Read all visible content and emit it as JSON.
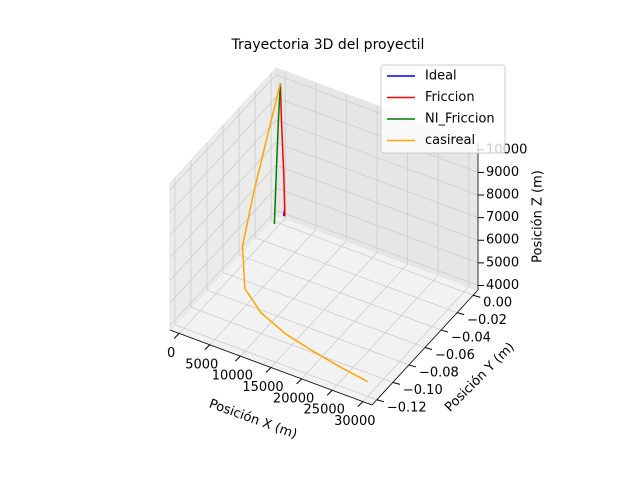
{
  "chart_data": {
    "type": "line3d",
    "title": "Trayectoria 3D del proyectil",
    "xlabel": "Posición X (m)",
    "ylabel": "Posición Y (m)",
    "zlabel": "Posición Z (m)",
    "xlim": [
      -1500,
      31500
    ],
    "ylim": [
      -0.126,
      0.006
    ],
    "zlim": [
      3800,
      10300
    ],
    "xticks": [
      0,
      5000,
      10000,
      15000,
      20000,
      25000,
      30000
    ],
    "yticks": [
      {
        "value": 0,
        "label": "0.00"
      },
      {
        "value": -0.02,
        "label": "−0.02"
      },
      {
        "value": -0.04,
        "label": "−0.04"
      },
      {
        "value": -0.06,
        "label": "−0.06"
      },
      {
        "value": -0.08,
        "label": "−0.08"
      },
      {
        "value": -0.1,
        "label": "−0.10"
      },
      {
        "value": -0.12,
        "label": "−0.12"
      }
    ],
    "zticks": [
      4000,
      5000,
      6000,
      7000,
      8000,
      9000,
      10000
    ],
    "grid": true,
    "legend": "upper right",
    "series": [
      {
        "name": "Ideal",
        "color": "#0000ff",
        "x": [
          800,
          1000
        ],
        "y": [
          -0.002,
          -0.002
        ],
        "z": [
          4300,
          4700
        ]
      },
      {
        "name": "Friccion",
        "color": "#ff0000",
        "x": [
          0,
          300,
          700,
          1000
        ],
        "y": [
          0,
          -0.001,
          -0.001,
          -0.002
        ],
        "z": [
          10000,
          8500,
          6000,
          4300
        ]
      },
      {
        "name": "NI_Friccion",
        "color": "#008000",
        "x": [
          0,
          200,
          400,
          600
        ],
        "y": [
          0,
          -0.004,
          -0.008,
          -0.012
        ],
        "z": [
          10000,
          8500,
          6500,
          4300
        ]
      },
      {
        "name": "casireal",
        "color": "#ffa500",
        "x": [
          0,
          500,
          1500,
          3000,
          6000,
          10000,
          15000,
          20000,
          25000,
          30000
        ],
        "y": [
          0,
          -0.02,
          -0.045,
          -0.07,
          -0.09,
          -0.1,
          -0.108,
          -0.113,
          -0.117,
          -0.12
        ],
        "z": [
          10000,
          8500,
          7000,
          5800,
          5000,
          4700,
          4600,
          4550,
          4500,
          4450
        ]
      }
    ]
  }
}
